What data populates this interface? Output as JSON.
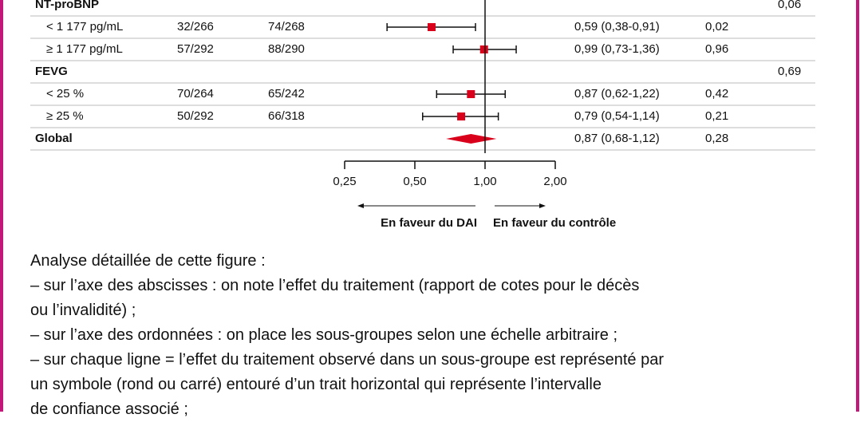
{
  "chart_data": {
    "type": "forest",
    "xscale": "log",
    "color": "#d9001b",
    "xlim": [
      0.25,
      2
    ],
    "xticks": [
      {
        "value": 0.25,
        "label": "0,25"
      },
      {
        "value": 0.5,
        "label": "0,50"
      },
      {
        "value": 1,
        "label": "1,00"
      },
      {
        "value": 2,
        "label": "2,00"
      }
    ],
    "ref": 1,
    "left_label": "En faveur du DAI",
    "right_label": "En faveur du contrôle",
    "rows": [
      {
        "name": "NT-proBNP",
        "p": "0,06"
      },
      {
        "name": "< 1 177 pg/mL",
        "dai": "32/266",
        "control": "74/268",
        "estimate": 0.59,
        "low": 0.38,
        "high": 0.91,
        "label": "0,59 (0,38-0,91)",
        "p": "0,02"
      },
      {
        "name": "≥ 1 177 pg/mL",
        "dai": "57/292",
        "control": "88/290",
        "estimate": 0.99,
        "low": 0.73,
        "high": 1.36,
        "label": "0,99 (0,73-1,36)",
        "p": "0,96"
      },
      {
        "name": "FEVG",
        "p": "0,69"
      },
      {
        "name": "< 25 %",
        "dai": "70/264",
        "control": "65/242",
        "estimate": 0.87,
        "low": 0.62,
        "high": 1.22,
        "label": "0,87 (0,62-1,22)",
        "p": "0,42"
      },
      {
        "name": "≥ 25 %",
        "dai": "50/292",
        "control": "66/318",
        "estimate": 0.79,
        "low": 0.54,
        "high": 1.14,
        "label": "0,79 (0,54-1,14)",
        "p": "0,21"
      },
      {
        "name": "Global",
        "marker": "diamond",
        "estimate": 0.87,
        "low": 0.68,
        "high": 1.12,
        "label": "0,87 (0,68-1,12)",
        "p": "0,28"
      }
    ]
  },
  "caption": [
    "Analyse détaillée de cette figure :",
    "– sur l’axe des abscisses : on note l’effet du traitement (rapport de cotes pour le décès",
    "ou l’invalidité) ;",
    "– sur l’axe des ordonnées : on place les sous-groupes selon une échelle arbitraire ;",
    "– sur chaque ligne = l’effet du traitement observé dans un sous-groupe est représenté par",
    "un symbole (rond ou carré) entouré d’un trait horizontal qui représente l’intervalle",
    "de confiance associé ;"
  ]
}
